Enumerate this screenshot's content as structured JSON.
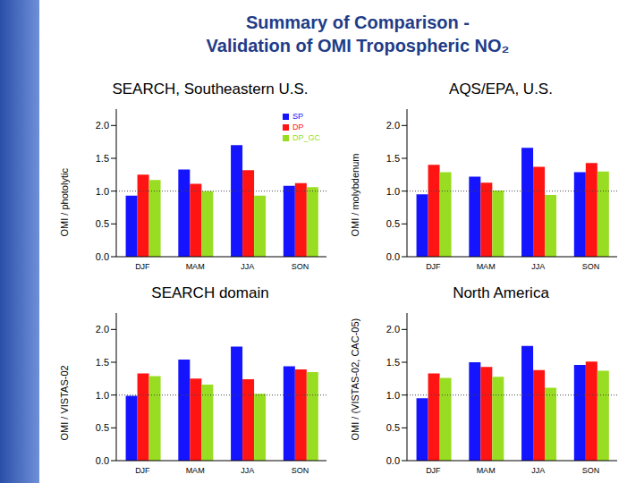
{
  "title": "Summary of Comparison - Validation of OMI Tropospheric NO₂",
  "chart_data": [
    {
      "type": "bar",
      "title": "SEARCH, Southeastern U.S.",
      "y_label": "OMI / photolytic",
      "categories": [
        "DJF",
        "MAM",
        "JJA",
        "SON"
      ],
      "series": [
        {
          "name": "SP",
          "color": "#1414ff",
          "values": [
            0.93,
            1.33,
            1.7,
            1.08
          ]
        },
        {
          "name": "DP",
          "color": "#ff1414",
          "values": [
            1.25,
            1.11,
            1.32,
            1.12
          ]
        },
        {
          "name": "DP_GC",
          "color": "#99dd22",
          "values": [
            1.17,
            1.0,
            0.93,
            1.06
          ]
        }
      ],
      "ylim": [
        0,
        2.25
      ],
      "yticks": [
        {
          "value": 0,
          "label": "0.0"
        },
        {
          "value": 0.5,
          "label": "0.5"
        },
        {
          "value": 1,
          "label": "1.0"
        },
        {
          "value": 1.5,
          "label": "1.5"
        },
        {
          "value": 2,
          "label": "2.0"
        }
      ],
      "reference_line": 1,
      "legend": "top-right"
    },
    {
      "type": "bar",
      "title": "AQS/EPA, U.S.",
      "y_label": "OMI / molybdenum",
      "categories": [
        "DJF",
        "MAM",
        "JJA",
        "SON"
      ],
      "series": [
        {
          "name": "SP",
          "color": "#1414ff",
          "values": [
            0.95,
            1.22,
            1.66,
            1.29
          ]
        },
        {
          "name": "DP",
          "color": "#ff1414",
          "values": [
            1.4,
            1.13,
            1.37,
            1.43
          ]
        },
        {
          "name": "DP_GC",
          "color": "#99dd22",
          "values": [
            1.29,
            1.01,
            0.94,
            1.3
          ]
        }
      ],
      "ylim": [
        0,
        2.25
      ],
      "yticks": [
        {
          "value": 0,
          "label": "0.0"
        },
        {
          "value": 0.5,
          "label": "0.5"
        },
        {
          "value": 1,
          "label": "1.0"
        },
        {
          "value": 1.5,
          "label": "1.5"
        },
        {
          "value": 2,
          "label": "2.0"
        }
      ],
      "reference_line": 1
    },
    {
      "type": "bar",
      "title": "SEARCH domain",
      "y_label": "OMI / VISTAS-02",
      "categories": [
        "DJF",
        "MAM",
        "JJA",
        "SON"
      ],
      "series": [
        {
          "name": "SP",
          "color": "#1414ff",
          "values": [
            0.99,
            1.54,
            1.74,
            1.44
          ]
        },
        {
          "name": "DP",
          "color": "#ff1414",
          "values": [
            1.33,
            1.25,
            1.24,
            1.39
          ]
        },
        {
          "name": "DP_GC",
          "color": "#99dd22",
          "values": [
            1.29,
            1.16,
            1.02,
            1.35
          ]
        }
      ],
      "ylim": [
        0,
        2.25
      ],
      "yticks": [
        {
          "value": 0,
          "label": "0.0"
        },
        {
          "value": 0.5,
          "label": "0.5"
        },
        {
          "value": 1,
          "label": "1.0"
        },
        {
          "value": 1.5,
          "label": "1.5"
        },
        {
          "value": 2,
          "label": "2.0"
        }
      ],
      "reference_line": 1
    },
    {
      "type": "bar",
      "title": "North America",
      "y_label": "OMI / (VISTAS-02, CAC-05)",
      "categories": [
        "DJF",
        "MAM",
        "JJA",
        "SON"
      ],
      "series": [
        {
          "name": "SP",
          "color": "#1414ff",
          "values": [
            0.95,
            1.5,
            1.75,
            1.46
          ]
        },
        {
          "name": "DP",
          "color": "#ff1414",
          "values": [
            1.33,
            1.43,
            1.38,
            1.51
          ]
        },
        {
          "name": "DP_GC",
          "color": "#99dd22",
          "values": [
            1.26,
            1.28,
            1.11,
            1.37
          ]
        }
      ],
      "ylim": [
        0,
        2.25
      ],
      "yticks": [
        {
          "value": 0,
          "label": "0.0"
        },
        {
          "value": 0.5,
          "label": "0.5"
        },
        {
          "value": 1,
          "label": "1.0"
        },
        {
          "value": 1.5,
          "label": "1.5"
        },
        {
          "value": 2,
          "label": "2.0"
        }
      ],
      "reference_line": 1
    }
  ]
}
